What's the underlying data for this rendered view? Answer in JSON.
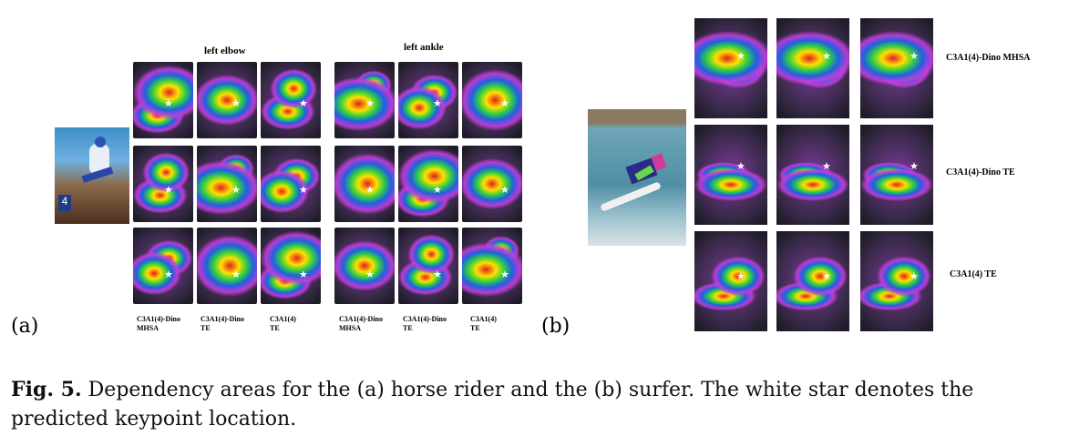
{
  "panel_a": {
    "letter": "(a)",
    "header_elbow": "left elbow",
    "header_ankle": "left ankle",
    "column_labels": [
      "C3A1(4)-Dino MHSA",
      "C3A1(4)-Dino TE",
      "C3A1(4) TE",
      "C3A1(4)-Dino MHSA",
      "C3A1(4)-Dino TE",
      "C3A1(4) TE"
    ]
  },
  "panel_b": {
    "letter": "(b)",
    "row_labels": [
      "C3A1(4)-Dino MHSA",
      "C3A1(4)-Dino TE",
      "C3A1(4) TE"
    ]
  },
  "caption": {
    "label": "Fig. 5.",
    "text": "Dependency areas for the (a) horse rider and the (b) surfer. The white star denotes the predicted keypoint location."
  },
  "star_glyph": "★"
}
